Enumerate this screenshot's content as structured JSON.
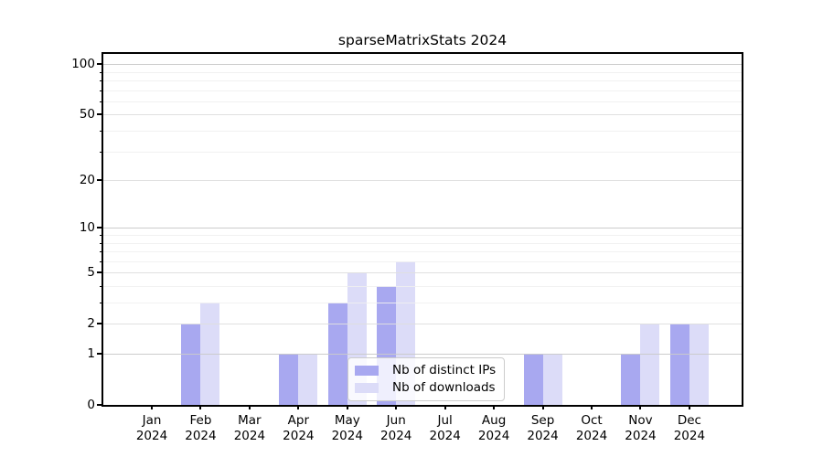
{
  "title": "sparseMatrixStats 2024",
  "chart_data": {
    "type": "bar",
    "title": "sparseMatrixStats 2024",
    "scale": "log1p",
    "grid": "horizontal",
    "legend_position": "lower center",
    "categories": [
      "Jan",
      "Feb",
      "Mar",
      "Apr",
      "May",
      "Jun",
      "Jul",
      "Aug",
      "Sep",
      "Oct",
      "Nov",
      "Dec"
    ],
    "category_year": "2024",
    "series": [
      {
        "name": "Nb of distinct IPs",
        "color": "#a8a8f0",
        "values": [
          0,
          2,
          0,
          1,
          3,
          4,
          0,
          0,
          1,
          0,
          1,
          2
        ]
      },
      {
        "name": "Nb of downloads",
        "color": "#dcdcf8",
        "values": [
          0,
          3,
          0,
          1,
          5,
          6,
          0,
          0,
          1,
          0,
          2,
          2
        ]
      }
    ],
    "yticks": [
      0,
      1,
      2,
      5,
      10,
      20,
      50,
      100
    ],
    "ytick_labels": [
      "0",
      "1",
      "2",
      "5",
      "10",
      "20",
      "50",
      "100"
    ],
    "minor_yticks": [
      3,
      4,
      6,
      7,
      8,
      9,
      30,
      40,
      60,
      70,
      80,
      90
    ],
    "ylim": [
      0,
      115
    ],
    "xlabel": "",
    "ylabel": "",
    "colors": {
      "grid_decade": "#c9c9c9",
      "grid_labeled": "#dedede",
      "grid_minor": "#efefef",
      "axis": "#000000",
      "text": "#000000",
      "background": "#ffffff"
    }
  }
}
